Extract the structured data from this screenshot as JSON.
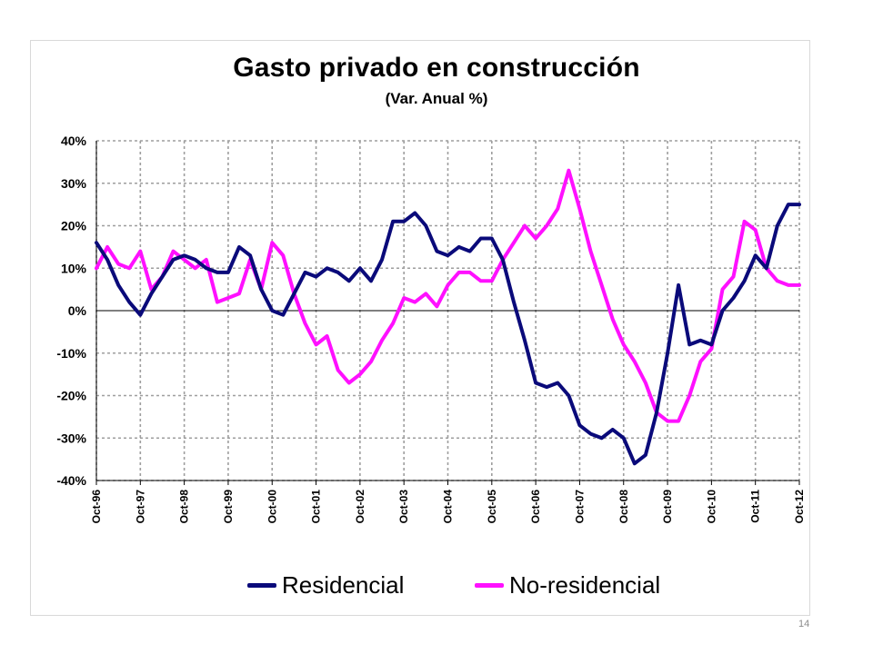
{
  "page_number": "14",
  "colors": {
    "residencial": "#0a0a7a",
    "no_residencial": "#ff10ff",
    "grid": "#9e9e9e",
    "zero_line": "#000000"
  },
  "chart_data": {
    "type": "line",
    "title": "Gasto privado en construcción",
    "subtitle": "(Var. Anual %)",
    "xlabel": "",
    "ylabel": "",
    "ylim": [
      -40,
      40
    ],
    "y_ticks": [
      "40%",
      "30%",
      "20%",
      "10%",
      "0%",
      "-10%",
      "-20%",
      "-30%",
      "-40%"
    ],
    "x_tick_labels": [
      "Oct-96",
      "Oct-97",
      "Oct-98",
      "Oct-99",
      "Oct-00",
      "Oct-01",
      "Oct-02",
      "Oct-03",
      "Oct-04",
      "Oct-05",
      "Oct-06",
      "Oct-07",
      "Oct-08",
      "Oct-09",
      "Oct-10",
      "Oct-11",
      "Oct-12"
    ],
    "grid": true,
    "legend_position": "bottom",
    "series": [
      {
        "name": "Residencial",
        "points": [
          [
            "Oct-96",
            16
          ],
          [
            "Jan-97",
            12
          ],
          [
            "Apr-97",
            6
          ],
          [
            "Jul-97",
            2
          ],
          [
            "Oct-97",
            -1
          ],
          [
            "Jan-98",
            4
          ],
          [
            "Apr-98",
            8
          ],
          [
            "Jul-98",
            12
          ],
          [
            "Oct-98",
            13
          ],
          [
            "Jan-99",
            12
          ],
          [
            "Apr-99",
            10
          ],
          [
            "Jul-99",
            9
          ],
          [
            "Oct-99",
            9
          ],
          [
            "Jan-00",
            15
          ],
          [
            "Apr-00",
            13
          ],
          [
            "Jul-00",
            5
          ],
          [
            "Oct-00",
            0
          ],
          [
            "Jan-01",
            -1
          ],
          [
            "Apr-01",
            4
          ],
          [
            "Jul-01",
            9
          ],
          [
            "Oct-01",
            8
          ],
          [
            "Jan-02",
            10
          ],
          [
            "Apr-02",
            9
          ],
          [
            "Jul-02",
            7
          ],
          [
            "Oct-02",
            10
          ],
          [
            "Jan-03",
            7
          ],
          [
            "Apr-03",
            12
          ],
          [
            "Jul-03",
            21
          ],
          [
            "Oct-03",
            21
          ],
          [
            "Jan-04",
            23
          ],
          [
            "Apr-04",
            20
          ],
          [
            "Jul-04",
            14
          ],
          [
            "Oct-04",
            13
          ],
          [
            "Jan-05",
            15
          ],
          [
            "Apr-05",
            14
          ],
          [
            "Jul-05",
            17
          ],
          [
            "Oct-05",
            17
          ],
          [
            "Jan-06",
            12
          ],
          [
            "Apr-06",
            2
          ],
          [
            "Jul-06",
            -7
          ],
          [
            "Oct-06",
            -17
          ],
          [
            "Jan-07",
            -18
          ],
          [
            "Apr-07",
            -17
          ],
          [
            "Jul-07",
            -20
          ],
          [
            "Oct-07",
            -27
          ],
          [
            "Jan-08",
            -29
          ],
          [
            "Apr-08",
            -30
          ],
          [
            "Jul-08",
            -28
          ],
          [
            "Oct-08",
            -30
          ],
          [
            "Jan-09",
            -36
          ],
          [
            "Apr-09",
            -34
          ],
          [
            "Jul-09",
            -24
          ],
          [
            "Oct-09",
            -10
          ],
          [
            "Jan-10",
            6
          ],
          [
            "Apr-10",
            -8
          ],
          [
            "Jul-10",
            -7
          ],
          [
            "Oct-10",
            -8
          ],
          [
            "Jan-11",
            0
          ],
          [
            "Apr-11",
            3
          ],
          [
            "Jul-11",
            7
          ],
          [
            "Oct-11",
            13
          ],
          [
            "Jan-12",
            10
          ],
          [
            "Apr-12",
            20
          ],
          [
            "Jul-12",
            25
          ],
          [
            "Oct-12",
            25
          ]
        ]
      },
      {
        "name": "No-residencial",
        "points": [
          [
            "Oct-96",
            10
          ],
          [
            "Jan-97",
            15
          ],
          [
            "Apr-97",
            11
          ],
          [
            "Jul-97",
            10
          ],
          [
            "Oct-97",
            14
          ],
          [
            "Jan-98",
            5
          ],
          [
            "Apr-98",
            8
          ],
          [
            "Jul-98",
            14
          ],
          [
            "Oct-98",
            12
          ],
          [
            "Jan-99",
            10
          ],
          [
            "Apr-99",
            12
          ],
          [
            "Jul-99",
            2
          ],
          [
            "Oct-99",
            3
          ],
          [
            "Jan-00",
            4
          ],
          [
            "Apr-00",
            12
          ],
          [
            "Jul-00",
            5
          ],
          [
            "Oct-00",
            16
          ],
          [
            "Jan-01",
            13
          ],
          [
            "Apr-01",
            4
          ],
          [
            "Jul-01",
            -3
          ],
          [
            "Oct-01",
            -8
          ],
          [
            "Jan-02",
            -6
          ],
          [
            "Apr-02",
            -14
          ],
          [
            "Jul-02",
            -17
          ],
          [
            "Oct-02",
            -15
          ],
          [
            "Jan-03",
            -12
          ],
          [
            "Apr-03",
            -7
          ],
          [
            "Jul-03",
            -3
          ],
          [
            "Oct-03",
            3
          ],
          [
            "Jan-04",
            2
          ],
          [
            "Apr-04",
            4
          ],
          [
            "Jul-04",
            1
          ],
          [
            "Oct-04",
            6
          ],
          [
            "Jan-05",
            9
          ],
          [
            "Apr-05",
            9
          ],
          [
            "Jul-05",
            7
          ],
          [
            "Oct-05",
            7
          ],
          [
            "Jan-06",
            12
          ],
          [
            "Apr-06",
            16
          ],
          [
            "Jul-06",
            20
          ],
          [
            "Oct-06",
            17
          ],
          [
            "Jan-07",
            20
          ],
          [
            "Apr-07",
            24
          ],
          [
            "Jul-07",
            33
          ],
          [
            "Oct-07",
            24
          ],
          [
            "Jan-08",
            14
          ],
          [
            "Apr-08",
            6
          ],
          [
            "Jul-08",
            -2
          ],
          [
            "Oct-08",
            -8
          ],
          [
            "Jan-09",
            -12
          ],
          [
            "Apr-09",
            -17
          ],
          [
            "Jul-09",
            -24
          ],
          [
            "Oct-09",
            -26
          ],
          [
            "Jan-10",
            -26
          ],
          [
            "Apr-10",
            -20
          ],
          [
            "Jul-10",
            -12
          ],
          [
            "Oct-10",
            -9
          ],
          [
            "Jan-11",
            5
          ],
          [
            "Apr-11",
            8
          ],
          [
            "Jul-11",
            21
          ],
          [
            "Oct-11",
            19
          ],
          [
            "Jan-12",
            10
          ],
          [
            "Apr-12",
            7
          ],
          [
            "Jul-12",
            6
          ],
          [
            "Oct-12",
            6
          ]
        ]
      }
    ]
  }
}
